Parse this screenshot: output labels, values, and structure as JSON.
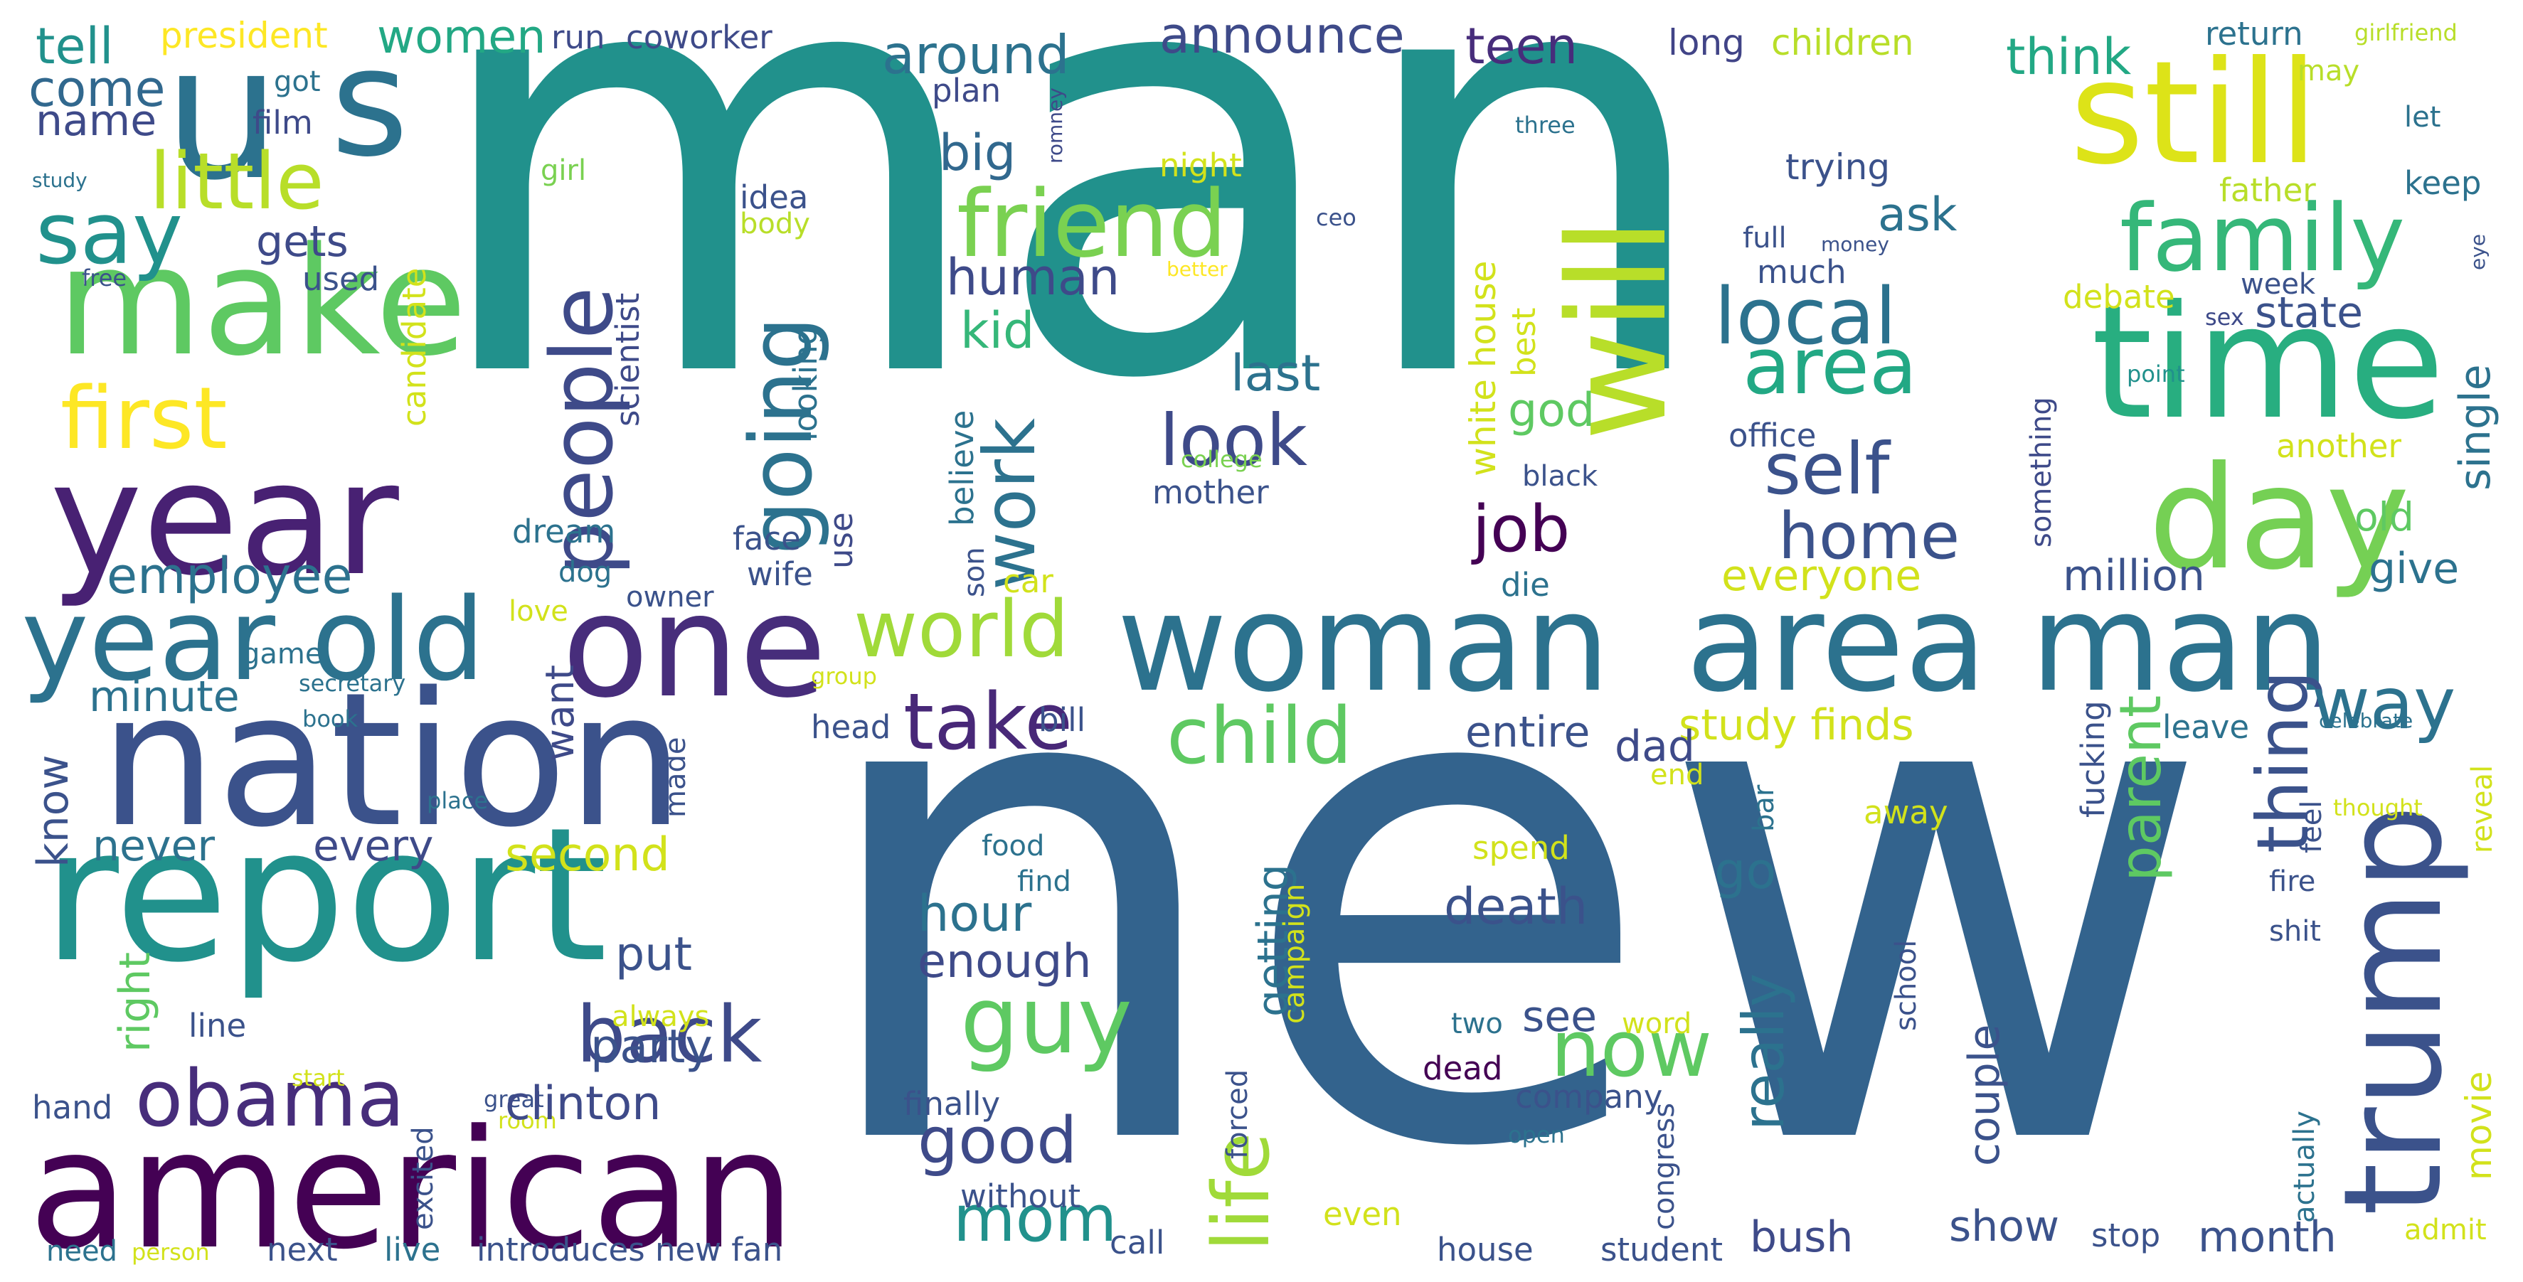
{
  "colors": [
    "#440154",
    "#472d7b",
    "#3b528b",
    "#2c728e",
    "#21918c",
    "#28ae80",
    "#5ec962",
    "#addc30",
    "#fde725"
  ],
  "words": [
    {
      "text": "man",
      "color": "#21918c"
    },
    {
      "text": "new",
      "color": "#33638d"
    },
    {
      "text": "u",
      "color": "#2c728e"
    },
    {
      "text": "s",
      "color": "#2c728e"
    },
    {
      "text": "make",
      "color": "#5ec962"
    },
    {
      "text": "year",
      "color": "#482173"
    },
    {
      "text": "report",
      "color": "#21918c"
    },
    {
      "text": "nation",
      "color": "#3b528b"
    },
    {
      "text": "american",
      "color": "#440154"
    },
    {
      "text": "one",
      "color": "#472d7b"
    },
    {
      "text": "year old",
      "color": "#2c728e"
    },
    {
      "text": "woman",
      "color": "#2c728e"
    },
    {
      "text": "area man",
      "color": "#2c728e"
    },
    {
      "text": "still",
      "color": "#dde318"
    },
    {
      "text": "time",
      "color": "#28ae80"
    },
    {
      "text": "day",
      "color": "#75d054"
    },
    {
      "text": "trump",
      "color": "#3b528b"
    },
    {
      "text": "will",
      "color": "#b8de29"
    },
    {
      "text": "friend",
      "color": "#7ad151"
    },
    {
      "text": "family",
      "color": "#35b779"
    },
    {
      "text": "people",
      "color": "#3e4a89"
    },
    {
      "text": "going",
      "color": "#2c728e"
    },
    {
      "text": "local",
      "color": "#2c728e"
    },
    {
      "text": "area",
      "color": "#22a884"
    },
    {
      "text": "self",
      "color": "#3b528b"
    },
    {
      "text": "home",
      "color": "#3b528b"
    },
    {
      "text": "job",
      "color": "#440154"
    },
    {
      "text": "look",
      "color": "#3e4a89"
    },
    {
      "text": "work",
      "color": "#2c728e"
    },
    {
      "text": "world",
      "color": "#a0da39"
    },
    {
      "text": "take",
      "color": "#482878"
    },
    {
      "text": "child",
      "color": "#5ec962"
    },
    {
      "text": "back",
      "color": "#3e4a89"
    },
    {
      "text": "guy",
      "color": "#5ec962"
    },
    {
      "text": "now",
      "color": "#5ec962"
    },
    {
      "text": "life",
      "color": "#a0da39"
    },
    {
      "text": "obama",
      "color": "#472d7b"
    },
    {
      "text": "good",
      "color": "#3e4a89"
    },
    {
      "text": "mom",
      "color": "#21918c"
    },
    {
      "text": "thing",
      "color": "#3b528b"
    },
    {
      "text": "way",
      "color": "#2c728e"
    },
    {
      "text": "parent",
      "color": "#5ec962"
    },
    {
      "text": "really",
      "color": "#2c728e"
    },
    {
      "text": "little",
      "color": "#b8de29"
    },
    {
      "text": "say",
      "color": "#21918c"
    },
    {
      "text": "first",
      "color": "#fde725"
    },
    {
      "text": "tell",
      "color": "#21918c"
    },
    {
      "text": "come",
      "color": "#31688e"
    },
    {
      "text": "name",
      "color": "#3e4a89"
    },
    {
      "text": "president",
      "color": "#fde725"
    },
    {
      "text": "women",
      "color": "#22a884"
    },
    {
      "text": "run",
      "color": "#3e4a89"
    },
    {
      "text": "coworker",
      "color": "#3e4a89"
    },
    {
      "text": "around",
      "color": "#2c728e"
    },
    {
      "text": "announce",
      "color": "#3e4a89"
    },
    {
      "text": "teen",
      "color": "#472d7b"
    },
    {
      "text": "long",
      "color": "#414487"
    },
    {
      "text": "children",
      "color": "#b8de29"
    },
    {
      "text": "think",
      "color": "#22a884"
    },
    {
      "text": "return",
      "color": "#2c728e"
    },
    {
      "text": "girlfriend",
      "color": "#b8de29"
    },
    {
      "text": "may",
      "color": "#b8de29"
    },
    {
      "text": "let",
      "color": "#2c728e"
    },
    {
      "text": "plan",
      "color": "#3e4a89"
    },
    {
      "text": "romney",
      "color": "#3e4a89"
    },
    {
      "text": "three",
      "color": "#2c728e"
    },
    {
      "text": "big",
      "color": "#31688e"
    },
    {
      "text": "film",
      "color": "#3e4a89"
    },
    {
      "text": "got",
      "color": "#2c728e"
    },
    {
      "text": "study",
      "color": "#2c728e"
    },
    {
      "text": "girl",
      "color": "#7ad151"
    },
    {
      "text": "idea",
      "color": "#3b528b"
    },
    {
      "text": "body",
      "color": "#b8de29"
    },
    {
      "text": "night",
      "color": "#d2e21b"
    },
    {
      "text": "trying",
      "color": "#3b528b"
    },
    {
      "text": "father",
      "color": "#b8de29"
    },
    {
      "text": "keep",
      "color": "#2c728e"
    },
    {
      "text": "ask",
      "color": "#2c728e"
    },
    {
      "text": "full",
      "color": "#3b528b"
    },
    {
      "text": "money",
      "color": "#3b528b"
    },
    {
      "text": "much",
      "color": "#3b528b"
    },
    {
      "text": "week",
      "color": "#3b528b"
    },
    {
      "text": "ceo",
      "color": "#3b528b"
    },
    {
      "text": "better",
      "color": "#fde725"
    },
    {
      "text": "eye",
      "color": "#3b528b"
    },
    {
      "text": "free",
      "color": "#3b528b"
    },
    {
      "text": "gets",
      "color": "#3e4a89"
    },
    {
      "text": "used",
      "color": "#3b528b"
    },
    {
      "text": "candidate",
      "color": "#d2e21b"
    },
    {
      "text": "scientist",
      "color": "#3e4a89"
    },
    {
      "text": "human",
      "color": "#3e4a89"
    },
    {
      "text": "kid",
      "color": "#35b779"
    },
    {
      "text": "last",
      "color": "#2c728e"
    },
    {
      "text": "white house",
      "color": "#d2e21b"
    },
    {
      "text": "best",
      "color": "#d2e21b"
    },
    {
      "text": "debate",
      "color": "#d2e21b"
    },
    {
      "text": "sex",
      "color": "#3e4a89"
    },
    {
      "text": "state",
      "color": "#3b528b"
    },
    {
      "text": "single",
      "color": "#2c728e"
    },
    {
      "text": "point",
      "color": "#21918c"
    },
    {
      "text": "college",
      "color": "#7ad151"
    },
    {
      "text": "god",
      "color": "#5ec962"
    },
    {
      "text": "something",
      "color": "#3e4a89"
    },
    {
      "text": "another",
      "color": "#d2e21b"
    },
    {
      "text": "office",
      "color": "#3b528b"
    },
    {
      "text": "looking",
      "color": "#2c728e"
    },
    {
      "text": "black",
      "color": "#3b528b"
    },
    {
      "text": "believe",
      "color": "#2c728e"
    },
    {
      "text": "mother",
      "color": "#3b528b"
    },
    {
      "text": "old",
      "color": "#5ec962"
    },
    {
      "text": "dream",
      "color": "#2c728e"
    },
    {
      "text": "face",
      "color": "#3b528b"
    },
    {
      "text": "use",
      "color": "#3e4a89"
    },
    {
      "text": "employee",
      "color": "#2c728e"
    },
    {
      "text": "dog",
      "color": "#2c728e"
    },
    {
      "text": "wife",
      "color": "#3b528b"
    },
    {
      "text": "son",
      "color": "#3b528b"
    },
    {
      "text": "car",
      "color": "#d2e21b"
    },
    {
      "text": "die",
      "color": "#2c728e"
    },
    {
      "text": "everyone",
      "color": "#d2e21b"
    },
    {
      "text": "million",
      "color": "#3b528b"
    },
    {
      "text": "give",
      "color": "#2c728e"
    },
    {
      "text": "love",
      "color": "#d2e21b"
    },
    {
      "text": "owner",
      "color": "#3b528b"
    },
    {
      "text": "game",
      "color": "#2c728e"
    },
    {
      "text": "secretary",
      "color": "#2c728e"
    },
    {
      "text": "group",
      "color": "#d2e21b"
    },
    {
      "text": "bill",
      "color": "#3b528b"
    },
    {
      "text": "minute",
      "color": "#2c728e"
    },
    {
      "text": "book",
      "color": "#2c728e"
    },
    {
      "text": "want",
      "color": "#3e4a89"
    },
    {
      "text": "entire",
      "color": "#3b528b"
    },
    {
      "text": "study finds",
      "color": "#d2e21b"
    },
    {
      "text": "fucking",
      "color": "#3b528b"
    },
    {
      "text": "leave",
      "color": "#2c728e"
    },
    {
      "text": "celebrate",
      "color": "#2c728e"
    },
    {
      "text": "head",
      "color": "#3b528b"
    },
    {
      "text": "made",
      "color": "#3b528b"
    },
    {
      "text": "place",
      "color": "#2c728e"
    },
    {
      "text": "know",
      "color": "#3b528b"
    },
    {
      "text": "dad",
      "color": "#3e4a89"
    },
    {
      "text": "end",
      "color": "#d2e21b"
    },
    {
      "text": "bar",
      "color": "#2c728e"
    },
    {
      "text": "away",
      "color": "#d2e21b"
    },
    {
      "text": "feel",
      "color": "#3b528b"
    },
    {
      "text": "thought",
      "color": "#d2e21b"
    },
    {
      "text": "reveal",
      "color": "#d2e21b"
    },
    {
      "text": "never",
      "color": "#2c728e"
    },
    {
      "text": "every",
      "color": "#3e4a89"
    },
    {
      "text": "second",
      "color": "#d2e21b"
    },
    {
      "text": "food",
      "color": "#2c728e"
    },
    {
      "text": "spend",
      "color": "#d2e21b"
    },
    {
      "text": "go",
      "color": "#2c728e"
    },
    {
      "text": "find",
      "color": "#2c728e"
    },
    {
      "text": "hour",
      "color": "#2c728e"
    },
    {
      "text": "getting",
      "color": "#2c728e"
    },
    {
      "text": "death",
      "color": "#3b528b"
    },
    {
      "text": "campaign",
      "color": "#d2e21b"
    },
    {
      "text": "school",
      "color": "#3b528b"
    },
    {
      "text": "fire",
      "color": "#3b528b"
    },
    {
      "text": "shit",
      "color": "#3b528b"
    },
    {
      "text": "right",
      "color": "#5ec962"
    },
    {
      "text": "put",
      "color": "#3b528b"
    },
    {
      "text": "enough",
      "color": "#3e4a89"
    },
    {
      "text": "see",
      "color": "#3b528b"
    },
    {
      "text": "word",
      "color": "#d2e21b"
    },
    {
      "text": "couple",
      "color": "#3b528b"
    },
    {
      "text": "line",
      "color": "#3b528b"
    },
    {
      "text": "always",
      "color": "#d2e21b"
    },
    {
      "text": "party",
      "color": "#3b528b"
    },
    {
      "text": "two",
      "color": "#2c728e"
    },
    {
      "text": "forced",
      "color": "#3b528b"
    },
    {
      "text": "dead",
      "color": "#440154"
    },
    {
      "text": "start",
      "color": "#d2e21b"
    },
    {
      "text": "hand",
      "color": "#3b528b"
    },
    {
      "text": "great",
      "color": "#3b528b"
    },
    {
      "text": "room",
      "color": "#d2e21b"
    },
    {
      "text": "clinton",
      "color": "#3e4a89"
    },
    {
      "text": "finally",
      "color": "#3b528b"
    },
    {
      "text": "company",
      "color": "#3b528b"
    },
    {
      "text": "congress",
      "color": "#3b528b"
    },
    {
      "text": "open",
      "color": "#2c728e"
    },
    {
      "text": "actually",
      "color": "#2c728e"
    },
    {
      "text": "movie",
      "color": "#d2e21b"
    },
    {
      "text": "excited",
      "color": "#3b528b"
    },
    {
      "text": "without",
      "color": "#3b528b"
    },
    {
      "text": "even",
      "color": "#d2e21b"
    },
    {
      "text": "bush",
      "color": "#3e4a89"
    },
    {
      "text": "show",
      "color": "#3b528b"
    },
    {
      "text": "month",
      "color": "#3b528b"
    },
    {
      "text": "admit",
      "color": "#d2e21b"
    },
    {
      "text": "need",
      "color": "#2c728e"
    },
    {
      "text": "person",
      "color": "#d2e21b"
    },
    {
      "text": "next",
      "color": "#3b528b"
    },
    {
      "text": "live",
      "color": "#2c728e"
    },
    {
      "text": "introduces new fan",
      "color": "#3b528b"
    },
    {
      "text": "call",
      "color": "#3b528b"
    },
    {
      "text": "house",
      "color": "#3b528b"
    },
    {
      "text": "student",
      "color": "#3b528b"
    },
    {
      "text": "stop",
      "color": "#3b528b"
    }
  ]
}
